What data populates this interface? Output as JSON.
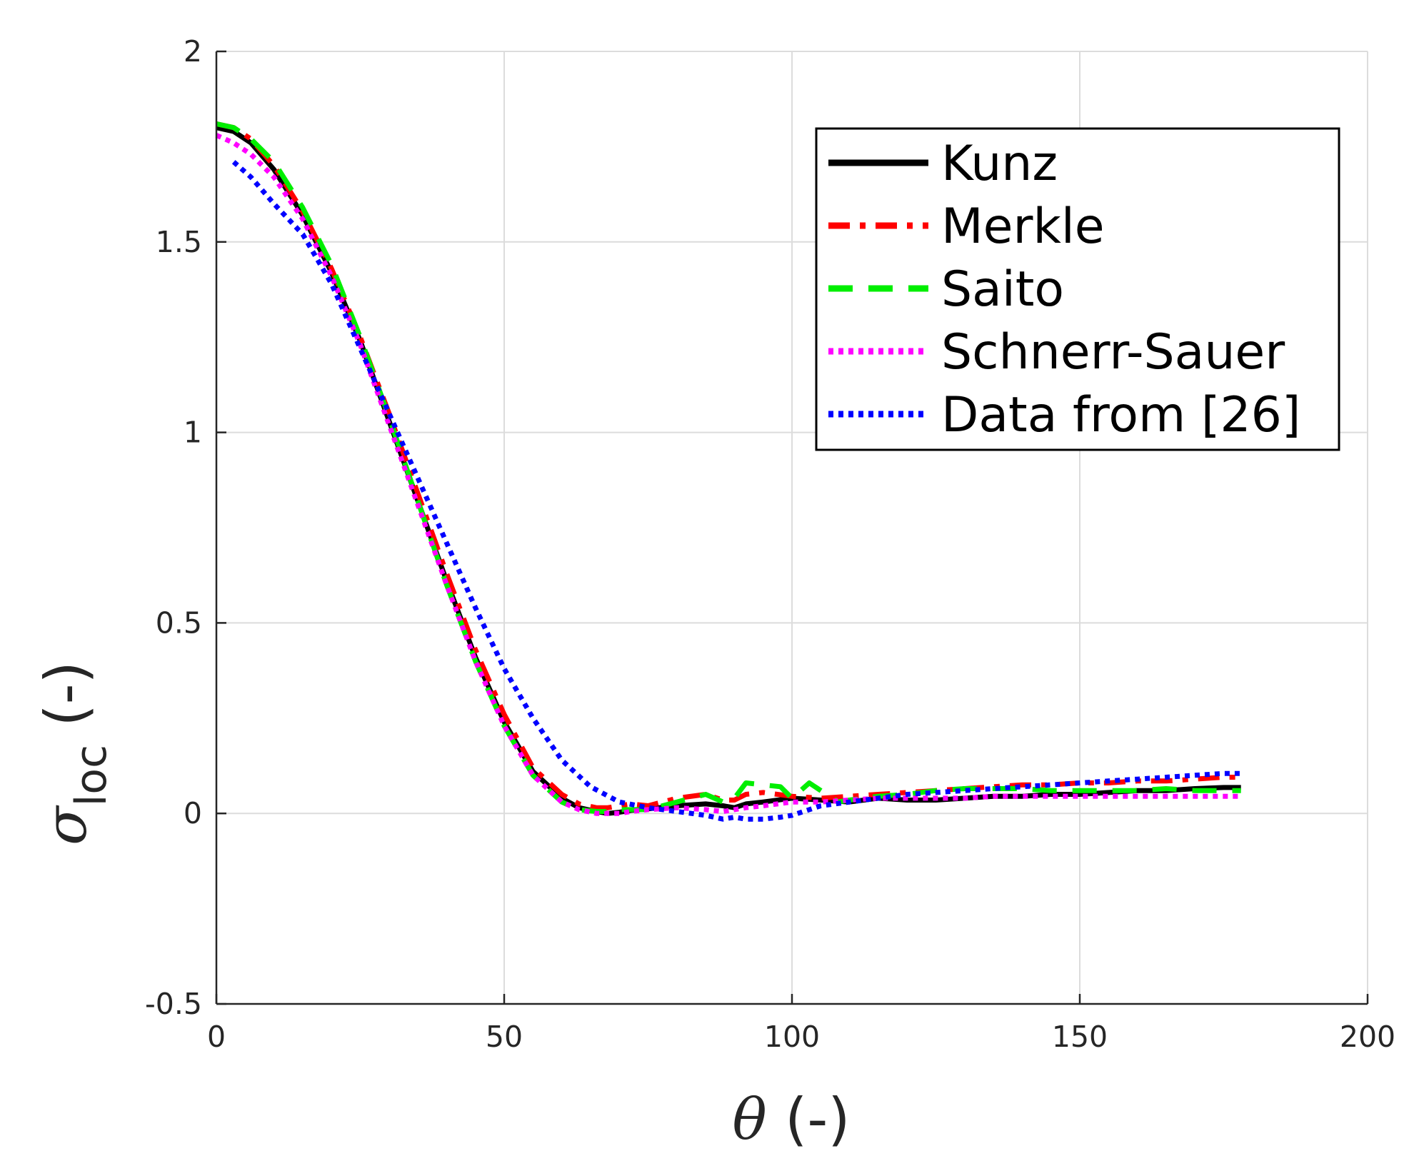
{
  "chart_data": {
    "type": "line",
    "title": "",
    "xlabel": "θ (-)",
    "ylabel": {
      "symbol": "σ",
      "subscript": "loc",
      "unit": " (-)"
    },
    "xlim": [
      0,
      200
    ],
    "ylim": [
      -0.5,
      2
    ],
    "xticks": [
      0,
      50,
      100,
      150,
      200
    ],
    "yticks": [
      -0.5,
      0,
      0.5,
      1,
      1.5,
      2
    ],
    "xtick_labels": [
      "0",
      "50",
      "100",
      "150",
      "200"
    ],
    "ytick_labels": [
      "-0.5",
      "0",
      "0.5",
      "1",
      "1.5",
      "2"
    ],
    "grid": true,
    "legend_position": "top-right",
    "series": [
      {
        "name": "Kunz",
        "color": "#000000",
        "style": "solid",
        "x": [
          0,
          3,
          6,
          10,
          15,
          20,
          25,
          30,
          35,
          40,
          45,
          50,
          55,
          60,
          63,
          66,
          68,
          70,
          72,
          75,
          80,
          85,
          88,
          90,
          92,
          95,
          100,
          105,
          110,
          115,
          120,
          125,
          130,
          135,
          140,
          145,
          150,
          155,
          160,
          165,
          170,
          175,
          178
        ],
        "y": [
          1.8,
          1.79,
          1.76,
          1.69,
          1.57,
          1.42,
          1.24,
          1.03,
          0.82,
          0.61,
          0.41,
          0.24,
          0.11,
          0.04,
          0.015,
          0.005,
          0.0,
          0.003,
          0.008,
          0.012,
          0.02,
          0.025,
          0.02,
          0.015,
          0.025,
          0.03,
          0.04,
          0.035,
          0.03,
          0.04,
          0.035,
          0.035,
          0.04,
          0.045,
          0.045,
          0.05,
          0.05,
          0.055,
          0.06,
          0.06,
          0.065,
          0.068,
          0.068
        ]
      },
      {
        "name": "Merkle",
        "color": "#ff0000",
        "style": "dashdot",
        "x": [
          0,
          3,
          6,
          10,
          15,
          20,
          25,
          30,
          35,
          40,
          45,
          50,
          55,
          60,
          63,
          66,
          68,
          70,
          72,
          75,
          80,
          85,
          88,
          90,
          92,
          95,
          100,
          105,
          110,
          115,
          120,
          125,
          130,
          135,
          140,
          145,
          150,
          155,
          160,
          165,
          170,
          175,
          178
        ],
        "y": [
          1.81,
          1.8,
          1.77,
          1.7,
          1.58,
          1.43,
          1.25,
          1.05,
          0.84,
          0.63,
          0.43,
          0.26,
          0.12,
          0.05,
          0.025,
          0.015,
          0.015,
          0.02,
          0.025,
          0.02,
          0.04,
          0.05,
          0.035,
          0.035,
          0.05,
          0.055,
          0.045,
          0.04,
          0.045,
          0.05,
          0.055,
          0.06,
          0.065,
          0.07,
          0.075,
          0.075,
          0.08,
          0.08,
          0.085,
          0.085,
          0.09,
          0.095,
          0.095
        ]
      },
      {
        "name": "Saito",
        "color": "#00ee00",
        "style": "dashed",
        "x": [
          0,
          3,
          6,
          10,
          15,
          20,
          25,
          30,
          35,
          40,
          45,
          50,
          55,
          60,
          63,
          66,
          68,
          70,
          72,
          75,
          80,
          85,
          88,
          90,
          92,
          95,
          98,
          100,
          103,
          105,
          108,
          110,
          115,
          120,
          125,
          130,
          135,
          140,
          145,
          150,
          155,
          160,
          165,
          170,
          175,
          178
        ],
        "y": [
          1.81,
          1.8,
          1.77,
          1.71,
          1.59,
          1.44,
          1.25,
          1.04,
          0.82,
          0.6,
          0.4,
          0.23,
          0.1,
          0.03,
          0.01,
          0.005,
          0.005,
          0.01,
          0.01,
          0.01,
          0.03,
          0.05,
          0.03,
          0.04,
          0.08,
          0.075,
          0.07,
          0.04,
          0.08,
          0.06,
          0.03,
          0.035,
          0.045,
          0.05,
          0.06,
          0.065,
          0.065,
          0.065,
          0.06,
          0.06,
          0.06,
          0.06,
          0.065,
          0.06,
          0.06,
          0.06
        ]
      },
      {
        "name": "Schnerr-Sauer",
        "color": "#ff00ff",
        "style": "dotted",
        "x": [
          0,
          3,
          6,
          10,
          15,
          20,
          25,
          30,
          35,
          40,
          45,
          50,
          55,
          60,
          63,
          66,
          68,
          70,
          72,
          75,
          80,
          85,
          88,
          90,
          92,
          95,
          100,
          105,
          110,
          115,
          120,
          125,
          130,
          135,
          140,
          145,
          150,
          155,
          160,
          165,
          170,
          175,
          178
        ],
        "y": [
          1.78,
          1.76,
          1.73,
          1.67,
          1.56,
          1.41,
          1.23,
          1.02,
          0.81,
          0.6,
          0.4,
          0.23,
          0.1,
          0.03,
          0.01,
          0.0,
          0.0,
          0.0,
          0.005,
          0.01,
          0.015,
          0.01,
          0.005,
          0.01,
          0.015,
          0.02,
          0.03,
          0.03,
          0.035,
          0.04,
          0.04,
          0.04,
          0.04,
          0.045,
          0.045,
          0.045,
          0.045,
          0.045,
          0.045,
          0.045,
          0.045,
          0.045,
          0.045
        ]
      },
      {
        "name": "Data from [26]",
        "color": "#0000ff",
        "style": "dotted",
        "x": [
          3,
          6,
          10,
          15,
          20,
          25,
          30,
          35,
          40,
          45,
          50,
          55,
          60,
          65,
          70,
          75,
          80,
          85,
          88,
          90,
          92,
          95,
          98,
          100,
          103,
          105,
          110,
          115,
          120,
          125,
          130,
          135,
          140,
          145,
          150,
          155,
          160,
          165,
          170,
          175,
          178
        ],
        "y": [
          1.71,
          1.67,
          1.6,
          1.52,
          1.39,
          1.22,
          1.05,
          0.88,
          0.71,
          0.54,
          0.38,
          0.25,
          0.14,
          0.07,
          0.03,
          0.015,
          0.005,
          -0.005,
          -0.015,
          -0.01,
          -0.015,
          -0.015,
          -0.01,
          -0.005,
          0.01,
          0.02,
          0.03,
          0.04,
          0.05,
          0.055,
          0.06,
          0.065,
          0.07,
          0.075,
          0.08,
          0.085,
          0.09,
          0.095,
          0.1,
          0.105,
          0.105
        ]
      }
    ]
  }
}
